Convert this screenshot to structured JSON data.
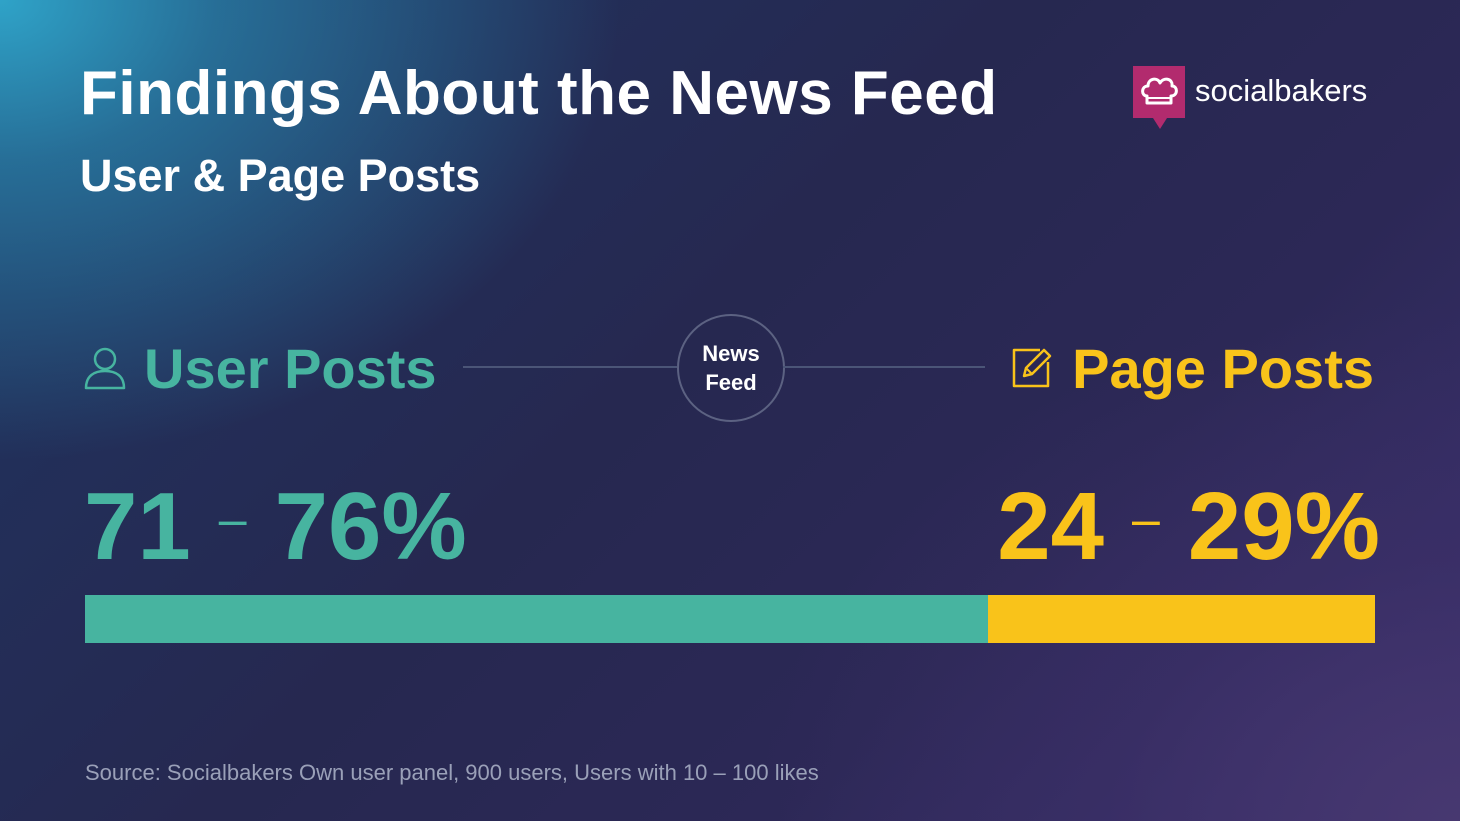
{
  "header": {
    "title": "Findings About the News Feed",
    "subtitle": "User & Page Posts"
  },
  "logo": {
    "text": "socialbakers",
    "icon": "chef-hat-icon",
    "color": "#b22b6e"
  },
  "center": {
    "line1": "News",
    "line2": "Feed"
  },
  "user": {
    "label": "User Posts",
    "icon": "person-icon",
    "range_low": "71",
    "range_sep": "–",
    "range_high": "76%",
    "color": "#47b4a0"
  },
  "page": {
    "label": "Page Posts",
    "icon": "edit-icon",
    "range_low": "24",
    "range_sep": "–",
    "range_high": "29%",
    "color": "#f9c31a"
  },
  "chart_data": {
    "type": "bar",
    "orientation": "horizontal-stacked",
    "categories": [
      "User Posts",
      "Page Posts"
    ],
    "series": [
      {
        "name": "User Posts",
        "values": [
          71,
          76
        ],
        "color": "#47b4a0"
      },
      {
        "name": "Page Posts",
        "values": [
          24,
          29
        ],
        "color": "#f9c31a"
      }
    ],
    "bar_split_fraction": 0.7,
    "xlim": [
      0,
      100
    ]
  },
  "footer": {
    "source": "Source: Socialbakers Own user panel, 900 users, Users with 10 – 100 likes"
  }
}
